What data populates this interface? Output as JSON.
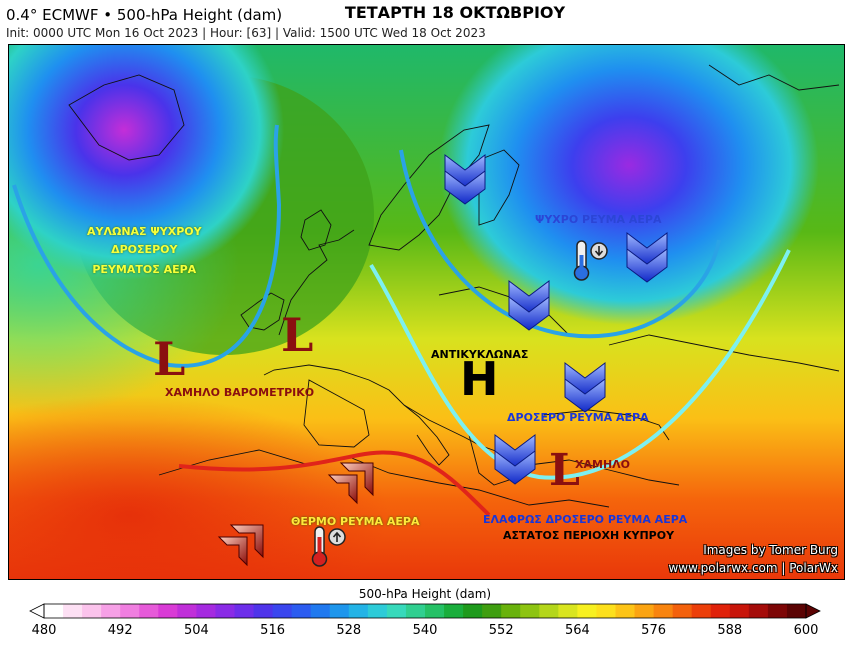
{
  "header": {
    "title": "0.4° ECMWF • 500-hPa Height (dam)",
    "subtitle": "Init: 0000 UTC Mon 16 Oct 2023 | Hour: [63] | Valid: 1500 UTC Wed 18 Oct 2023",
    "day_heading": "ΤΕΤΑΡΤΗ 18 ΟΚΤΩΒΡΙΟΥ"
  },
  "annotations": {
    "trough_line1": "ΑΥΛΩΝΑΣ ΨΥΧΡΟΥ",
    "trough_line2": "ΔΡΟΣΕΡΟΥ",
    "trough_line3": "ΡΕΥΜΑΤΟΣ ΑΕΡΑ",
    "low_west": "ΧΑΜΗΛΟ ΒΑΡΟΜΕΤΡΙΚΟ",
    "cold_stream": "ΨΥΧΡΟ ΡΕΥΜΑ ΑΕΡΑ",
    "anticyclone": "ΑΝΤΙΚΥΚΛΩΝΑΣ",
    "cool_stream": "ΔΡΟΣΕΡΟ ΡΕΥΜΑ ΑΕΡΑ",
    "low_east": "ΧΑΜΗΛΟ",
    "warm_stream": "ΘΕΡΜΟ ΡΕΥΜΑ ΑΕΡΑ",
    "slight_cool": "ΕΛΑΦΡΩΣ ΔΡΟΣΕΡΟ ΡΕΥΜΑ ΑΕΡΑ",
    "unstable": "ΑΣΤΑΤΟΣ ΠΕΡΙΟΧΗ ΚΥΠΡΟΥ",
    "letter_low": "L",
    "letter_high": "H"
  },
  "credits": {
    "line1": "Images by Tomer Burg",
    "line2": "www.polarwx.com | PolarWx"
  },
  "icons": [
    "thermometer-down-icon",
    "thermometer-up-icon",
    "blue-chevron-arrow-icon",
    "red-chevron-arrow-icon"
  ],
  "colorbar": {
    "title": "500-hPa Height (dam)",
    "min": 480,
    "max": 600,
    "step": 3,
    "tick_labels": [
      "480",
      "492",
      "504",
      "516",
      "528",
      "540",
      "552",
      "564",
      "576",
      "588",
      "600"
    ],
    "colors": [
      "#ffffff",
      "#fde0f4",
      "#fbc3ec",
      "#f6a0e6",
      "#f07ee0",
      "#e65ad9",
      "#d93bd6",
      "#c02fd9",
      "#a52ae0",
      "#8a2be6",
      "#6d2eea",
      "#4f34ea",
      "#3a46ee",
      "#2c5cf0",
      "#2079ef",
      "#1e96ec",
      "#23b3e6",
      "#2dcbd8",
      "#37d9bb",
      "#30cf90",
      "#25c166",
      "#1aae3c",
      "#1e9a1c",
      "#3f9e10",
      "#69b20c",
      "#8dc411",
      "#b4d61a",
      "#d9e51f",
      "#f7f020",
      "#fde01c",
      "#fdc417",
      "#fba412",
      "#f8840f",
      "#f3610c",
      "#ec3f0a",
      "#e0220a",
      "#c8150a",
      "#a50c0a",
      "#7d0606",
      "#5b0303"
    ]
  }
}
